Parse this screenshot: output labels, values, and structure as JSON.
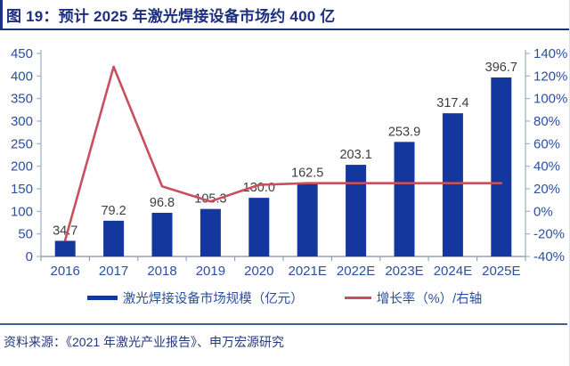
{
  "header": {
    "title": "图 19：预计 2025 年激光焊接设备市场约 400 亿"
  },
  "legend": {
    "bar_label": "激光焊接设备市场规模（亿元）",
    "line_label": "增长率（%）/右轴"
  },
  "footer": {
    "source": "资料来源：《2021 年激光产业报告》、申万宏源研究"
  },
  "colors": {
    "title_navy": "#1d2f7e",
    "axis_label_blue": "#2c4fa0",
    "bar_blue": "#14379e",
    "line_red": "#c7505c",
    "value_label_gray": "#3d3d3d",
    "axis_line": "#a3b2c6",
    "baseline": "#94a2b2",
    "separator_blue": "#44618f"
  },
  "chart_data": {
    "type": "bar",
    "subtype": "bar-line-combo",
    "title": "预计 2025 年激光焊接设备市场约 400 亿",
    "categories": [
      "2016",
      "2017",
      "2018",
      "2019",
      "2020",
      "2021E",
      "2022E",
      "2023E",
      "2024E",
      "2025E"
    ],
    "series": [
      {
        "name": "激光焊接设备市场规模（亿元）",
        "type": "bar",
        "axis": "left",
        "values": [
          34.7,
          79.2,
          96.8,
          105.3,
          130.0,
          162.5,
          203.1,
          253.9,
          317.4,
          396.7
        ],
        "labels": [
          "34.7",
          "79.2",
          "96.8",
          "105.3",
          "130.0",
          "162.5",
          "203.1",
          "253.9",
          "317.4",
          "396.7"
        ]
      },
      {
        "name": "增长率（%）/右轴",
        "type": "line",
        "axis": "right",
        "values": [
          -25.5,
          128.2,
          22.2,
          8.8,
          23.5,
          25.0,
          25.0,
          25.0,
          25.0,
          25.0
        ]
      }
    ],
    "left_axis": {
      "min": 0,
      "max": 450,
      "step": 50
    },
    "right_axis": {
      "min": -40,
      "max": 140,
      "step": 20,
      "suffix": "%"
    },
    "grid": false,
    "legend_position": "bottom"
  }
}
